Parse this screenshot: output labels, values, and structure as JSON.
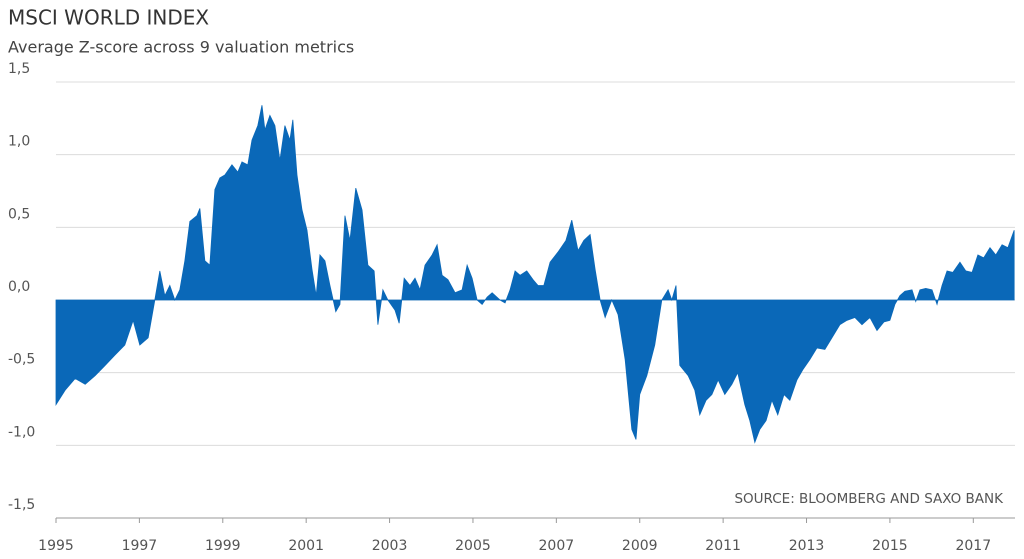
{
  "chart_data": {
    "type": "area",
    "title": "MSCI WORLD INDEX",
    "subtitle": "Average Z-score across 9 valuation metrics",
    "annotation": "SOURCE: BLOOMBERG AND SAXO BANK",
    "color": "#0a68b8",
    "grid": true,
    "xlim": [
      1995,
      2018
    ],
    "xticks": [
      1995,
      1997,
      1999,
      2001,
      2003,
      2005,
      2007,
      2009,
      2011,
      2013,
      2015,
      2017
    ],
    "ylim": [
      -1.5,
      1.5
    ],
    "yticks": [
      {
        "value": -1.5,
        "label": "-1,5"
      },
      {
        "value": -1.0,
        "label": "-1,0"
      },
      {
        "value": -0.5,
        "label": "-0,5"
      },
      {
        "value": 0,
        "label": "0,0"
      },
      {
        "value": 0.5,
        "label": "0,5"
      },
      {
        "value": 1.0,
        "label": "1,0"
      },
      {
        "value": 1.5,
        "label": "1,5"
      }
    ],
    "x": [
      1995.0,
      1995.22,
      1995.46,
      1995.7,
      1995.94,
      1996.18,
      1996.41,
      1996.65,
      1996.85,
      1997.01,
      1997.21,
      1997.37,
      1997.49,
      1997.61,
      1997.73,
      1997.85,
      1997.97,
      1998.09,
      1998.21,
      1998.38,
      1998.45,
      1998.57,
      1998.69,
      1998.81,
      1998.93,
      1999.05,
      1999.22,
      1999.36,
      1999.46,
      1999.6,
      1999.7,
      1999.84,
      1999.94,
      2000.01,
      2000.13,
      2000.25,
      2000.37,
      2000.49,
      2000.61,
      2000.68,
      2000.78,
      2000.9,
      2001.02,
      2001.14,
      2001.24,
      2001.33,
      2001.45,
      2001.57,
      2001.71,
      2001.81,
      2001.93,
      2002.05,
      2002.19,
      2002.34,
      2002.48,
      2002.63,
      2002.72,
      2002.84,
      2002.96,
      2003.13,
      2003.23,
      2003.35,
      2003.49,
      2003.61,
      2003.73,
      2003.85,
      2004.02,
      2004.14,
      2004.26,
      2004.4,
      2004.57,
      2004.74,
      2004.86,
      2004.98,
      2005.1,
      2005.22,
      2005.34,
      2005.46,
      2005.65,
      2005.77,
      2005.89,
      2006.01,
      2006.13,
      2006.29,
      2006.44,
      2006.56,
      2006.7,
      2006.85,
      2007.04,
      2007.23,
      2007.37,
      2007.52,
      2007.66,
      2007.81,
      2007.93,
      2008.05,
      2008.17,
      2008.33,
      2008.48,
      2008.65,
      2008.81,
      2008.91,
      2009.0,
      2009.17,
      2009.36,
      2009.53,
      2009.68,
      2009.77,
      2009.87,
      2009.96,
      2010.16,
      2010.32,
      2010.44,
      2010.59,
      2010.73,
      2010.88,
      2011.04,
      2011.21,
      2011.35,
      2011.52,
      2011.64,
      2011.76,
      2011.88,
      2012.03,
      2012.17,
      2012.31,
      2012.46,
      2012.6,
      2012.77,
      2012.91,
      2013.08,
      2013.25,
      2013.44,
      2013.61,
      2013.8,
      2013.97,
      2014.16,
      2014.33,
      2014.52,
      2014.69,
      2014.86,
      2015.0,
      2015.12,
      2015.24,
      2015.36,
      2015.53,
      2015.62,
      2015.72,
      2015.86,
      2016.01,
      2016.13,
      2016.25,
      2016.37,
      2016.51,
      2016.68,
      2016.82,
      2016.97,
      2017.11,
      2017.25,
      2017.4,
      2017.54,
      2017.69,
      2017.83,
      2017.98
    ],
    "values": [
      -0.72,
      -0.62,
      -0.54,
      -0.58,
      -0.52,
      -0.45,
      -0.38,
      -0.31,
      -0.14,
      -0.31,
      -0.26,
      0.0,
      0.2,
      0.03,
      0.1,
      0.0,
      0.07,
      0.27,
      0.54,
      0.58,
      0.63,
      0.27,
      0.24,
      0.76,
      0.84,
      0.86,
      0.93,
      0.88,
      0.95,
      0.93,
      1.1,
      1.2,
      1.34,
      1.17,
      1.27,
      1.2,
      0.96,
      1.2,
      1.1,
      1.24,
      0.86,
      0.62,
      0.48,
      0.21,
      0.03,
      0.31,
      0.27,
      0.1,
      -0.08,
      -0.03,
      0.58,
      0.41,
      0.77,
      0.62,
      0.24,
      0.2,
      -0.17,
      0.07,
      0.0,
      -0.07,
      -0.16,
      0.15,
      0.1,
      0.15,
      0.07,
      0.24,
      0.31,
      0.38,
      0.17,
      0.14,
      0.05,
      0.07,
      0.24,
      0.15,
      0.0,
      -0.03,
      0.02,
      0.05,
      0.0,
      -0.02,
      0.07,
      0.2,
      0.17,
      0.2,
      0.14,
      0.1,
      0.1,
      0.26,
      0.33,
      0.41,
      0.55,
      0.34,
      0.41,
      0.45,
      0.21,
      0.0,
      -0.12,
      0.0,
      -0.1,
      -0.41,
      -0.89,
      -0.96,
      -0.65,
      -0.52,
      -0.31,
      0.0,
      0.07,
      0.0,
      0.1,
      -0.45,
      -0.52,
      -0.62,
      -0.79,
      -0.69,
      -0.65,
      -0.55,
      -0.65,
      -0.58,
      -0.5,
      -0.72,
      -0.83,
      -0.98,
      -0.89,
      -0.83,
      -0.69,
      -0.79,
      -0.65,
      -0.69,
      -0.55,
      -0.48,
      -0.41,
      -0.33,
      -0.34,
      -0.26,
      -0.17,
      -0.14,
      -0.12,
      -0.17,
      -0.12,
      -0.21,
      -0.15,
      -0.14,
      -0.03,
      0.03,
      0.06,
      0.07,
      -0.01,
      0.07,
      0.08,
      0.07,
      -0.03,
      0.1,
      0.2,
      0.19,
      0.26,
      0.2,
      0.19,
      0.31,
      0.29,
      0.36,
      0.31,
      0.38,
      0.36,
      0.48
    ]
  }
}
